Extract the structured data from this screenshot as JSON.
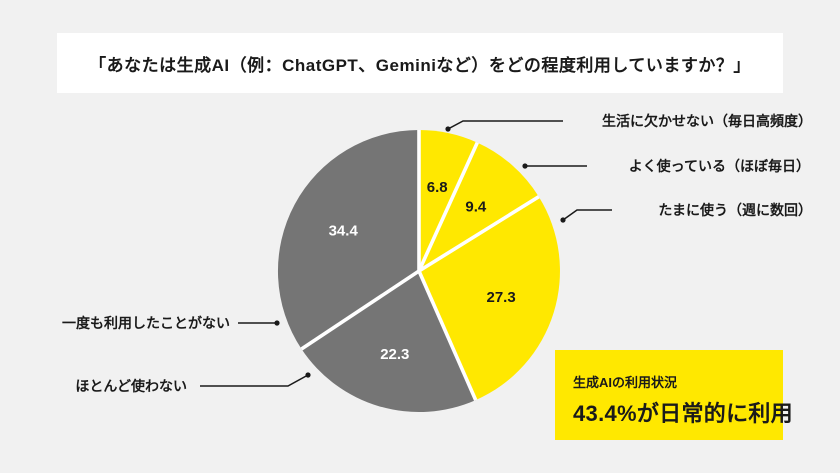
{
  "title": "「あなたは生成AI（例：ChatGPT、Geminiなど）をどの程度利用していますか？」",
  "chart_data": {
    "type": "pie",
    "title": "あなたは生成AI（例：ChatGPT、Geminiなど）をどの程度利用していますか？",
    "unit": "%",
    "direction": "clockwise",
    "start_angle": "top",
    "legend_position": "callout-labels",
    "slices": [
      {
        "label": "生活に欠かせない（毎日高頻度）",
        "value": 6.8,
        "color": "#FFE800",
        "value_label_color": "#1A1A1A"
      },
      {
        "label": "よく使っている（ほぼ毎日）",
        "value": 9.4,
        "color": "#FFE800",
        "value_label_color": "#1A1A1A"
      },
      {
        "label": "たまに使う（週に数回）",
        "value": 27.3,
        "color": "#FFE800",
        "value_label_color": "#1A1A1A"
      },
      {
        "label": "ほとんど使わない",
        "value": 22.3,
        "color": "#757575",
        "value_label_color": "#FFFFFF"
      },
      {
        "label": "一度も利用したことがない",
        "value": 34.4,
        "color": "#757575",
        "value_label_color": "#FFFFFF"
      }
    ]
  },
  "summary_box": {
    "caption": "生成AIの利用状況",
    "headline": "43.4%が日常的に利用",
    "background": "#FFE800"
  },
  "colors": {
    "background": "#F1F1F1",
    "card": "#FFFFFF",
    "accent_yellow": "#FFE800",
    "neutral_gray": "#757575",
    "text": "#1A1A1A",
    "leader_line": "#1A1A1A",
    "slice_divider": "#FFFFFF"
  }
}
